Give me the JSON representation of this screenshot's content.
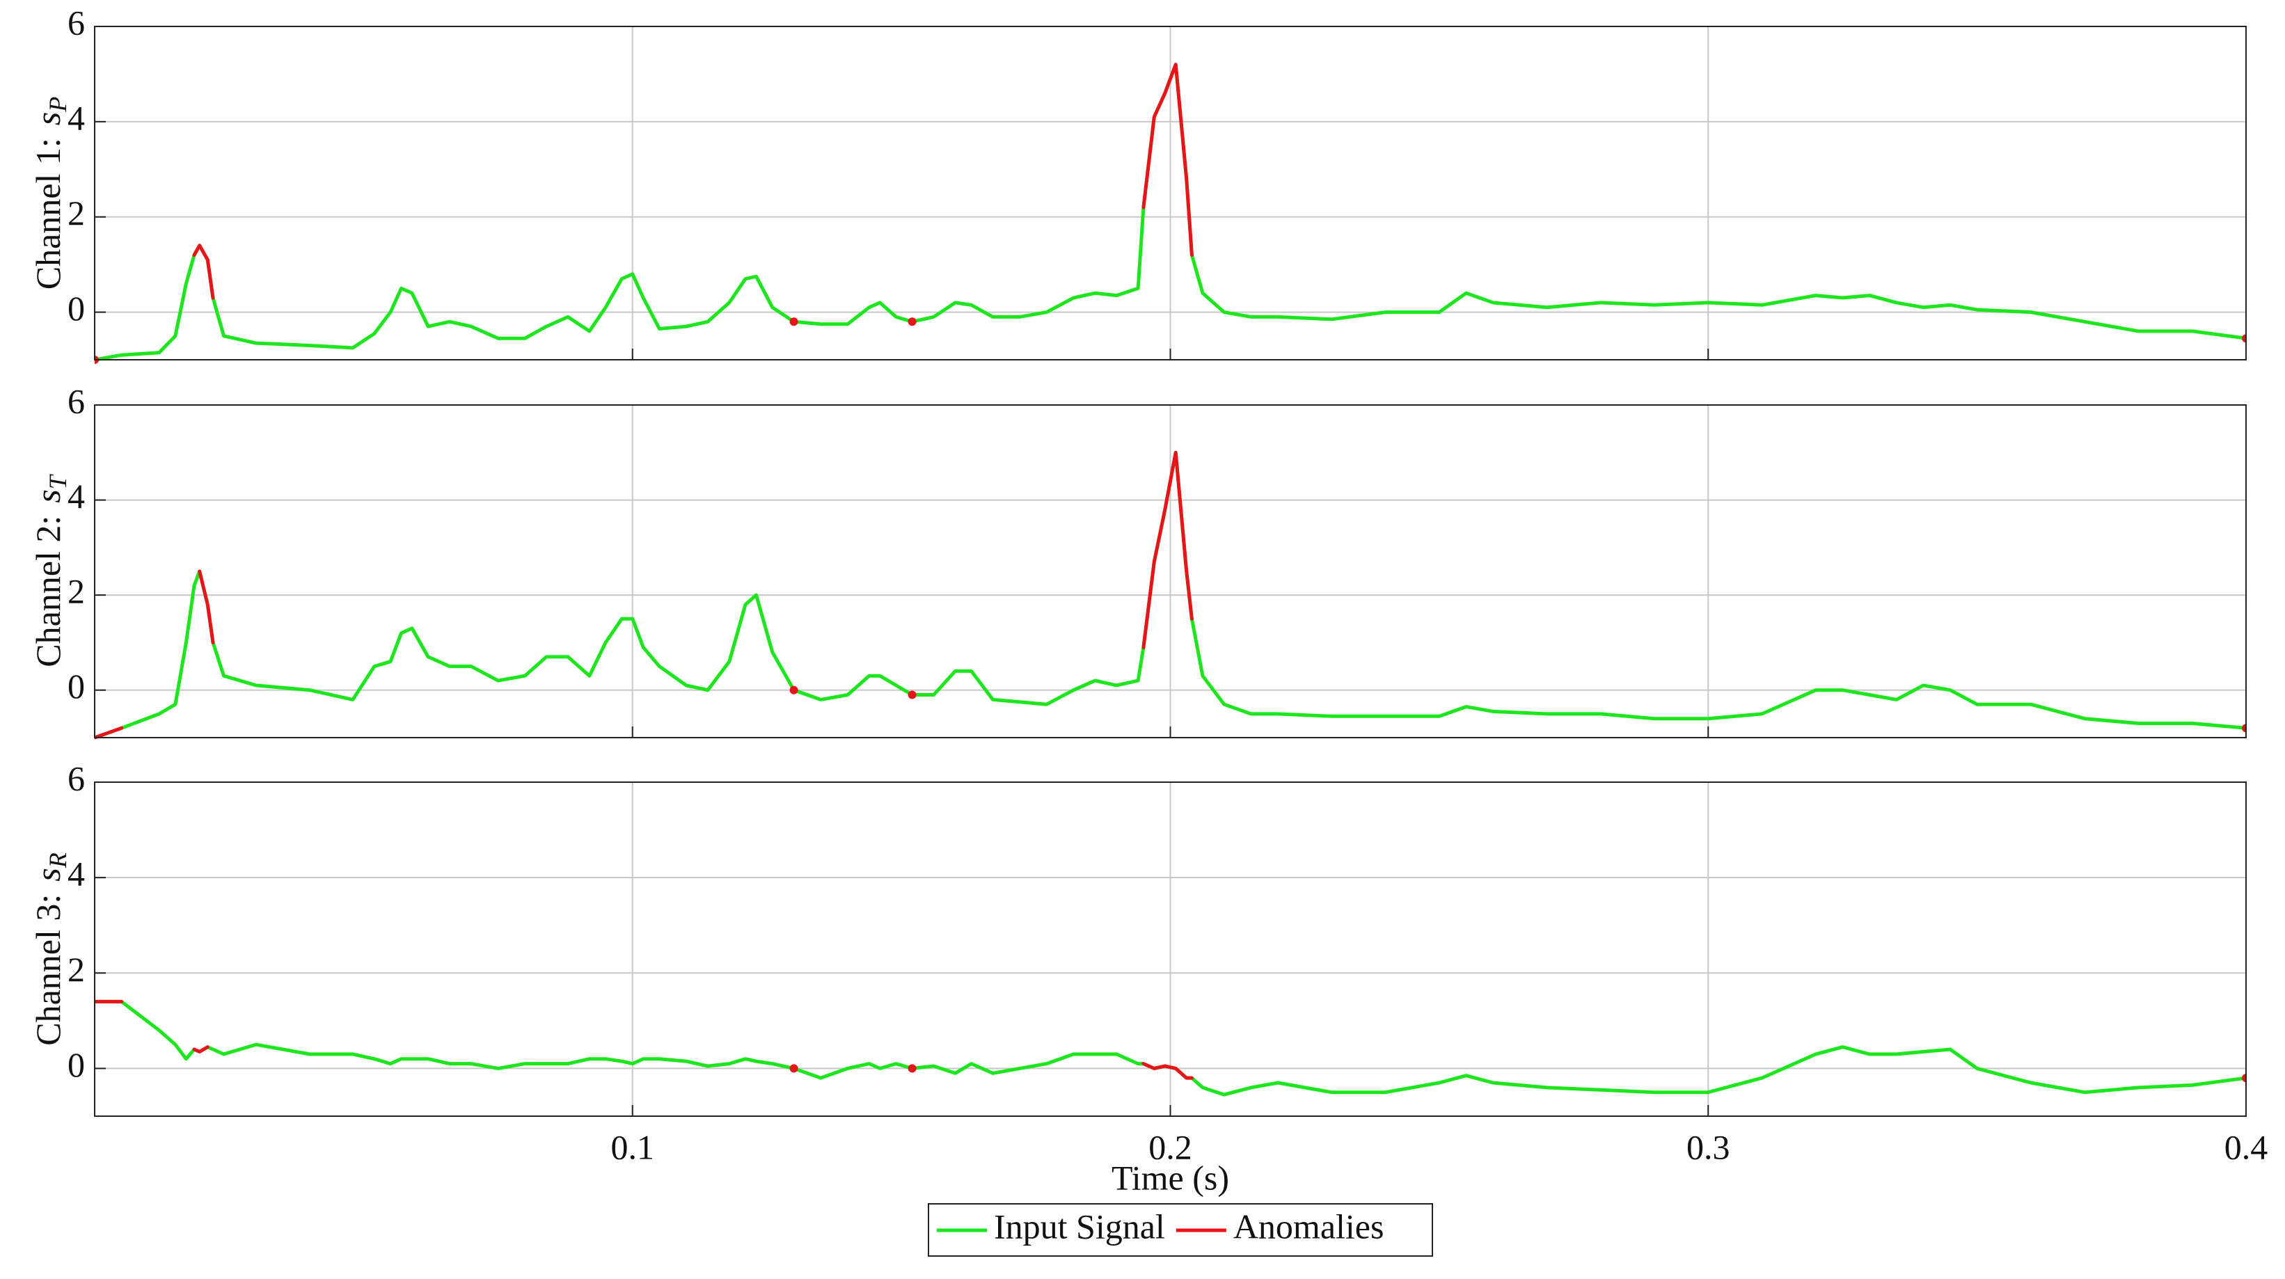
{
  "chart_data": [
    {
      "type": "line",
      "ylabel": "Channel 1:",
      "ylabel_var": "s",
      "ylabel_sub": "P",
      "xlim": [
        0,
        0.4
      ],
      "xticks": [
        0.1,
        0.2,
        0.3,
        0.4
      ],
      "ylim": [
        -1,
        6
      ],
      "yticks": [
        0,
        2,
        4,
        6
      ],
      "grid": true,
      "show_xticklabels": false,
      "x": [
        0,
        0.005,
        0.012,
        0.015,
        0.017,
        0.0185,
        0.0195,
        0.021,
        0.022,
        0.024,
        0.03,
        0.04,
        0.048,
        0.052,
        0.055,
        0.057,
        0.059,
        0.062,
        0.066,
        0.07,
        0.075,
        0.08,
        0.084,
        0.088,
        0.092,
        0.095,
        0.098,
        0.1,
        0.102,
        0.105,
        0.11,
        0.114,
        0.118,
        0.121,
        0.123,
        0.126,
        0.13,
        0.135,
        0.14,
        0.144,
        0.146,
        0.149,
        0.152,
        0.156,
        0.16,
        0.163,
        0.167,
        0.172,
        0.177,
        0.182,
        0.186,
        0.19,
        0.194,
        0.195,
        0.197,
        0.199,
        0.201,
        0.203,
        0.204,
        0.206,
        0.21,
        0.215,
        0.22,
        0.23,
        0.24,
        0.25,
        0.255,
        0.26,
        0.27,
        0.28,
        0.29,
        0.3,
        0.31,
        0.32,
        0.325,
        0.33,
        0.335,
        0.34,
        0.345,
        0.35,
        0.36,
        0.37,
        0.38,
        0.39,
        0.4
      ],
      "series": [
        {
          "name": "Input Signal",
          "color": "#1ee61e",
          "values": [
            -1.0,
            -0.9,
            -0.85,
            -0.5,
            0.6,
            1.2,
            1.4,
            1.1,
            0.3,
            -0.5,
            -0.65,
            -0.7,
            -0.75,
            -0.45,
            0.0,
            0.5,
            0.4,
            -0.3,
            -0.2,
            -0.3,
            -0.55,
            -0.55,
            -0.3,
            -0.1,
            -0.4,
            0.1,
            0.7,
            0.8,
            0.3,
            -0.35,
            -0.3,
            -0.2,
            0.2,
            0.7,
            0.75,
            0.1,
            -0.2,
            -0.25,
            -0.25,
            0.1,
            0.2,
            -0.1,
            -0.2,
            -0.1,
            0.2,
            0.15,
            -0.1,
            -0.1,
            0.0,
            0.3,
            0.4,
            0.35,
            0.5,
            2.2,
            4.1,
            4.6,
            5.2,
            2.8,
            1.2,
            0.4,
            0.0,
            -0.1,
            -0.1,
            -0.15,
            0.0,
            0.0,
            0.4,
            0.2,
            0.1,
            0.2,
            0.15,
            0.2,
            0.15,
            0.35,
            0.3,
            0.35,
            0.2,
            0.1,
            0.15,
            0.05,
            0.0,
            -0.2,
            -0.4,
            -0.4,
            -0.55
          ]
        },
        {
          "name": "Anomalies",
          "color": "#e8141a",
          "values": [
            -1.0,
            null,
            null,
            null,
            null,
            1.2,
            1.4,
            1.1,
            0.3,
            null,
            null,
            null,
            null,
            null,
            null,
            null,
            null,
            null,
            null,
            null,
            null,
            null,
            null,
            null,
            null,
            null,
            null,
            null,
            null,
            null,
            null,
            null,
            null,
            null,
            null,
            null,
            -0.2,
            null,
            null,
            null,
            null,
            null,
            -0.2,
            null,
            null,
            null,
            null,
            null,
            null,
            null,
            null,
            null,
            null,
            2.2,
            4.1,
            4.6,
            5.2,
            2.8,
            1.2,
            null,
            null,
            null,
            null,
            null,
            null,
            null,
            null,
            null,
            null,
            null,
            null,
            null,
            null,
            null,
            null,
            null,
            null,
            null,
            null,
            null,
            null,
            null,
            null,
            null,
            -0.55
          ]
        }
      ]
    },
    {
      "type": "line",
      "ylabel": "Channel 2:",
      "ylabel_var": "s",
      "ylabel_sub": "T",
      "xlim": [
        0,
        0.4
      ],
      "xticks": [
        0.1,
        0.2,
        0.3,
        0.4
      ],
      "ylim": [
        -1,
        6
      ],
      "yticks": [
        0,
        2,
        4,
        6
      ],
      "grid": true,
      "show_xticklabels": false,
      "x": [
        0,
        0.005,
        0.012,
        0.015,
        0.017,
        0.0185,
        0.0195,
        0.021,
        0.022,
        0.024,
        0.03,
        0.04,
        0.048,
        0.052,
        0.055,
        0.057,
        0.059,
        0.062,
        0.066,
        0.07,
        0.075,
        0.08,
        0.084,
        0.088,
        0.092,
        0.095,
        0.098,
        0.1,
        0.102,
        0.105,
        0.11,
        0.114,
        0.118,
        0.121,
        0.123,
        0.126,
        0.13,
        0.135,
        0.14,
        0.144,
        0.146,
        0.149,
        0.152,
        0.156,
        0.16,
        0.163,
        0.167,
        0.172,
        0.177,
        0.182,
        0.186,
        0.19,
        0.194,
        0.195,
        0.197,
        0.199,
        0.201,
        0.203,
        0.204,
        0.206,
        0.21,
        0.215,
        0.22,
        0.23,
        0.24,
        0.25,
        0.255,
        0.26,
        0.27,
        0.28,
        0.29,
        0.3,
        0.31,
        0.32,
        0.325,
        0.33,
        0.335,
        0.34,
        0.345,
        0.35,
        0.36,
        0.37,
        0.38,
        0.39,
        0.4
      ],
      "series": [
        {
          "color": "#1ee61e",
          "values": [
            -1.0,
            -0.8,
            -0.5,
            -0.3,
            1.0,
            2.2,
            2.5,
            1.8,
            1.0,
            0.3,
            0.1,
            0.0,
            -0.2,
            0.5,
            0.6,
            1.2,
            1.3,
            0.7,
            0.5,
            0.5,
            0.2,
            0.3,
            0.7,
            0.7,
            0.3,
            1.0,
            1.5,
            1.5,
            0.9,
            0.5,
            0.1,
            0.0,
            0.6,
            1.8,
            2.0,
            0.8,
            0.0,
            -0.2,
            -0.1,
            0.3,
            0.3,
            0.1,
            -0.1,
            -0.1,
            0.4,
            0.4,
            -0.2,
            -0.25,
            -0.3,
            0.0,
            0.2,
            0.1,
            0.2,
            0.9,
            2.7,
            3.8,
            5.0,
            2.5,
            1.5,
            0.3,
            -0.3,
            -0.5,
            -0.5,
            -0.55,
            -0.55,
            -0.55,
            -0.35,
            -0.45,
            -0.5,
            -0.5,
            -0.6,
            -0.6,
            -0.5,
            0.0,
            0.0,
            -0.1,
            -0.2,
            0.1,
            0.0,
            -0.3,
            -0.3,
            -0.6,
            -0.7,
            -0.7,
            -0.8
          ]
        },
        {
          "color": "#e8141a",
          "values": [
            -1.0,
            -0.8,
            null,
            null,
            null,
            null,
            2.5,
            1.8,
            1.0,
            null,
            null,
            null,
            null,
            null,
            null,
            null,
            null,
            null,
            null,
            null,
            null,
            null,
            null,
            null,
            null,
            null,
            null,
            null,
            null,
            null,
            null,
            null,
            null,
            null,
            null,
            null,
            0.0,
            null,
            null,
            null,
            null,
            null,
            -0.1,
            null,
            null,
            null,
            null,
            null,
            null,
            null,
            null,
            null,
            null,
            0.9,
            2.7,
            3.8,
            5.0,
            2.5,
            1.5,
            null,
            null,
            null,
            null,
            null,
            null,
            null,
            null,
            null,
            null,
            null,
            null,
            null,
            null,
            null,
            null,
            null,
            null,
            null,
            null,
            null,
            null,
            null,
            null,
            null,
            -0.8
          ]
        }
      ]
    },
    {
      "type": "line",
      "ylabel": "Channel 3:",
      "ylabel_var": "s",
      "ylabel_sub": "R",
      "xlabel": "Time (s)",
      "xlim": [
        0,
        0.4
      ],
      "xticks": [
        0.1,
        0.2,
        0.3,
        0.4
      ],
      "ylim": [
        -1,
        6
      ],
      "yticks": [
        0,
        2,
        4,
        6
      ],
      "grid": true,
      "show_xticklabels": true,
      "x": [
        0,
        0.005,
        0.012,
        0.015,
        0.017,
        0.0185,
        0.0195,
        0.021,
        0.022,
        0.024,
        0.03,
        0.04,
        0.048,
        0.052,
        0.055,
        0.057,
        0.059,
        0.062,
        0.066,
        0.07,
        0.075,
        0.08,
        0.084,
        0.088,
        0.092,
        0.095,
        0.098,
        0.1,
        0.102,
        0.105,
        0.11,
        0.114,
        0.118,
        0.121,
        0.123,
        0.126,
        0.13,
        0.135,
        0.14,
        0.144,
        0.146,
        0.149,
        0.152,
        0.156,
        0.16,
        0.163,
        0.167,
        0.172,
        0.177,
        0.182,
        0.186,
        0.19,
        0.194,
        0.195,
        0.197,
        0.199,
        0.201,
        0.203,
        0.204,
        0.206,
        0.21,
        0.215,
        0.22,
        0.23,
        0.24,
        0.25,
        0.255,
        0.26,
        0.27,
        0.28,
        0.29,
        0.3,
        0.31,
        0.32,
        0.325,
        0.33,
        0.335,
        0.34,
        0.345,
        0.35,
        0.36,
        0.37,
        0.38,
        0.39,
        0.4
      ],
      "series": [
        {
          "color": "#1ee61e",
          "values": [
            1.4,
            1.4,
            0.8,
            0.5,
            0.2,
            0.4,
            0.35,
            0.45,
            0.4,
            0.3,
            0.5,
            0.3,
            0.3,
            0.2,
            0.1,
            0.2,
            0.2,
            0.2,
            0.1,
            0.1,
            0.0,
            0.1,
            0.1,
            0.1,
            0.2,
            0.2,
            0.15,
            0.1,
            0.2,
            0.2,
            0.15,
            0.05,
            0.1,
            0.2,
            0.15,
            0.1,
            0.0,
            -0.2,
            0.0,
            0.1,
            0.0,
            0.1,
            0.0,
            0.05,
            -0.1,
            0.1,
            -0.1,
            0.0,
            0.1,
            0.3,
            0.3,
            0.3,
            0.1,
            0.1,
            0.0,
            0.05,
            0.0,
            -0.2,
            -0.2,
            -0.4,
            -0.55,
            -0.4,
            -0.3,
            -0.5,
            -0.5,
            -0.3,
            -0.15,
            -0.3,
            -0.4,
            -0.45,
            -0.5,
            -0.5,
            -0.2,
            0.3,
            0.45,
            0.3,
            0.3,
            0.35,
            0.4,
            0.0,
            -0.3,
            -0.5,
            -0.4,
            -0.35,
            -0.2
          ]
        },
        {
          "color": "#e8141a",
          "values": [
            1.4,
            1.4,
            null,
            null,
            null,
            0.4,
            0.35,
            0.45,
            null,
            null,
            null,
            null,
            null,
            null,
            null,
            null,
            null,
            null,
            null,
            null,
            null,
            null,
            null,
            null,
            null,
            null,
            null,
            null,
            null,
            null,
            null,
            null,
            null,
            null,
            null,
            null,
            0.0,
            null,
            null,
            null,
            null,
            null,
            0.0,
            null,
            null,
            null,
            null,
            null,
            null,
            null,
            null,
            null,
            null,
            0.1,
            0.0,
            0.05,
            0.0,
            -0.2,
            -0.2,
            null,
            null,
            null,
            null,
            null,
            null,
            null,
            null,
            null,
            null,
            null,
            null,
            null,
            null,
            null,
            null,
            null,
            null,
            null,
            null,
            null,
            null,
            null,
            null,
            null,
            -0.2
          ]
        }
      ]
    }
  ]
}
